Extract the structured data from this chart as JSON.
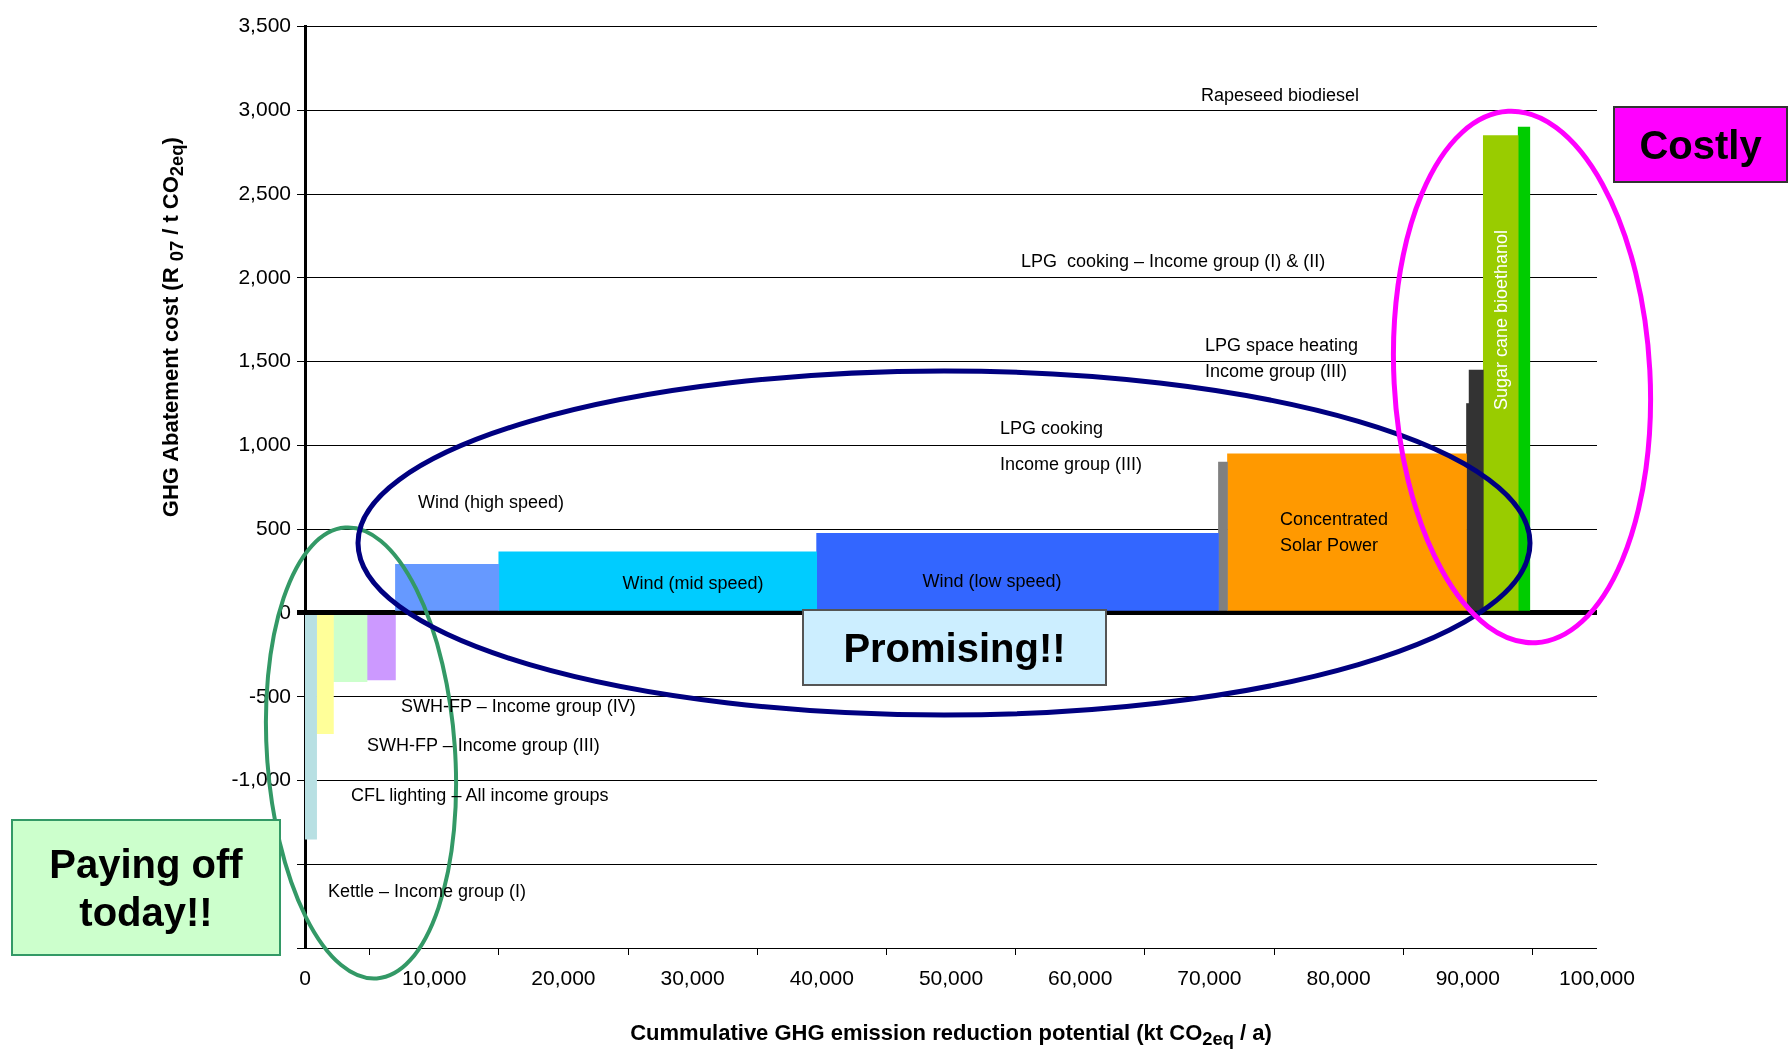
{
  "chart_data": {
    "type": "histogram",
    "xlabel": "Cummulative GHG emission reduction potential (kt CO$_{2eq}$ / a)",
    "ylabel": "GHG Abatement cost (R $_{07}$ / t CO$_{2eq}$)",
    "bins": [
      0,
      900,
      2200,
      4800,
      7000,
      15000,
      39600,
      70700,
      71400,
      89900,
      90100,
      91200,
      93900,
      94800
    ],
    "values": [
      -1350,
      -720,
      -410,
      -400,
      290,
      365,
      475,
      900,
      950,
      1250,
      1450,
      2850,
      2900
    ],
    "colors": [
      "#b8e0e3",
      "#ffff99",
      "#ccffcc",
      "#cc99ff",
      "#6699ff",
      "#00ccff",
      "#3366ff",
      "#808080",
      "#ff9900",
      "#333333",
      "#333333",
      "#99cc00",
      "#00cc00"
    ],
    "xlim": [
      0,
      100000
    ],
    "xticks": [
      0,
      {
        "value": 10000,
        "label": "10,000"
      },
      {
        "value": 20000,
        "label": "20,000"
      },
      {
        "value": 30000,
        "label": "30,000"
      },
      {
        "value": 40000,
        "label": "40,000"
      },
      {
        "value": 50000,
        "label": "50,000"
      },
      {
        "value": 60000,
        "label": "60,000"
      },
      {
        "value": 70000,
        "label": "70,000"
      },
      {
        "value": 80000,
        "label": "80,000"
      },
      {
        "value": 90000,
        "label": "90,000"
      },
      {
        "value": 100000,
        "label": "100,000"
      }
    ],
    "ylim": [
      -2000,
      3500
    ],
    "yticks": [
      {
        "value": -2000,
        "label": null
      },
      {
        "value": -1500,
        "label": null
      },
      {
        "value": -1000,
        "label": "-1,000"
      },
      -500,
      0,
      500,
      {
        "value": 1000,
        "label": "1,000"
      },
      {
        "value": 1500,
        "label": "1,500"
      },
      {
        "value": 2000,
        "label": "2,000"
      },
      {
        "value": 2500,
        "label": "2,500"
      },
      {
        "value": 3000,
        "label": "3,000"
      },
      {
        "value": 3500,
        "label": "3,500"
      }
    ],
    "grid": "y",
    "legend": false,
    "annotations": [
      "Rapeseed biodiesel",
      "LPG  cooking – Income group (I) & (II)",
      "LPG space heating\nIncome group (III)",
      "LPG cooking\nIncome group (III)",
      "Wind (high speed)",
      "Wind (mid speed)",
      "Wind (low speed)",
      "Concentrated\nSolar Power",
      "Sugar cane bioethanol",
      "SWH-FP – Income group (IV)",
      "SWH-FP – Income group (III)",
      "CFL lighting – All income groups",
      "Kettle – Income group (I)",
      "Paying off\ntoday!!",
      "Promising!!",
      "Costly"
    ]
  }
}
